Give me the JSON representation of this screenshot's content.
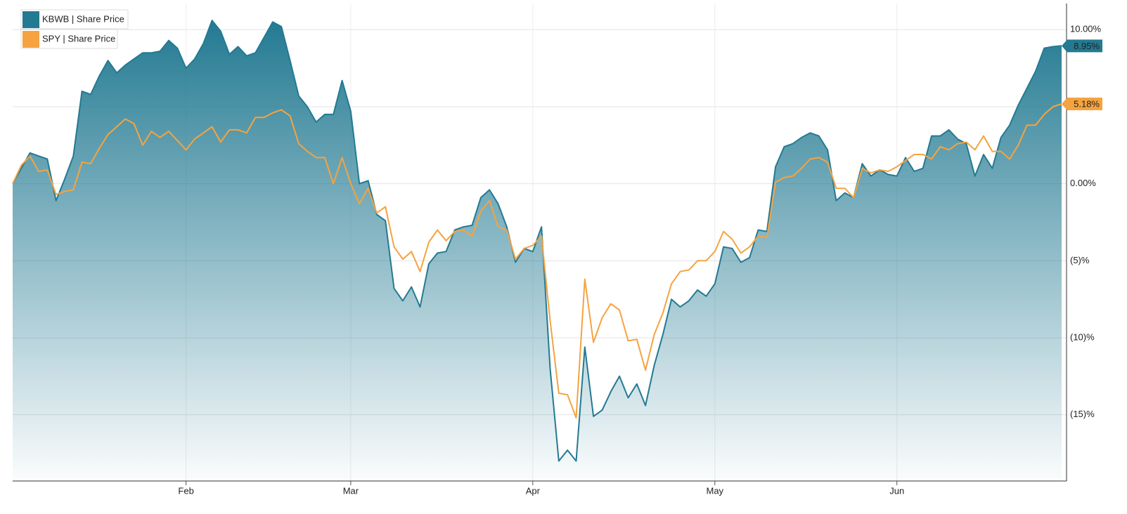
{
  "chart_data": {
    "type": "area-line",
    "categories": [
      null,
      null,
      null,
      null,
      null,
      null,
      null,
      null,
      null,
      null,
      null,
      null,
      null,
      null,
      null,
      null,
      null,
      null,
      null,
      null,
      "Feb",
      null,
      null,
      null,
      null,
      null,
      null,
      null,
      null,
      null,
      null,
      null,
      null,
      null,
      null,
      null,
      null,
      null,
      null,
      "Mar",
      null,
      null,
      null,
      null,
      null,
      null,
      null,
      null,
      null,
      null,
      null,
      null,
      null,
      null,
      null,
      null,
      null,
      null,
      null,
      null,
      "Apr",
      null,
      null,
      null,
      null,
      null,
      null,
      null,
      null,
      null,
      null,
      null,
      null,
      null,
      null,
      null,
      null,
      null,
      null,
      null,
      null,
      "May",
      null,
      null,
      null,
      null,
      null,
      null,
      null,
      null,
      null,
      null,
      null,
      null,
      null,
      null,
      null,
      null,
      null,
      null,
      null,
      null,
      "Jun",
      null,
      null,
      null,
      null,
      null,
      null,
      null,
      null,
      null,
      null,
      null,
      null,
      null,
      null,
      null,
      null,
      null,
      null,
      null
    ],
    "series": [
      {
        "name": "KBWB | Share Price",
        "color": "#237a92",
        "fill": true,
        "values": [
          0,
          1.0,
          2.0,
          1.8,
          1.6,
          -1.1,
          0.3,
          1.8,
          6.0,
          5.8,
          7.0,
          8.0,
          7.2,
          7.7,
          8.1,
          8.5,
          8.5,
          8.6,
          9.3,
          8.8,
          7.5,
          8.1,
          9.1,
          10.6,
          9.9,
          8.4,
          8.9,
          8.3,
          8.5,
          9.5,
          10.5,
          10.2,
          8.0,
          5.7,
          5.0,
          4.0,
          4.5,
          4.5,
          6.7,
          4.7,
          0.0,
          0.2,
          -2.0,
          -2.4,
          -6.8,
          -7.6,
          -6.7,
          -8.0,
          -5.2,
          -4.5,
          -4.4,
          -3.0,
          -2.8,
          -2.7,
          -0.9,
          -0.4,
          -1.3,
          -2.8,
          -5.1,
          -4.2,
          -4.4,
          -2.8,
          -12.0,
          -18.0,
          -17.3,
          -18.0,
          -10.6,
          -15.1,
          -14.7,
          -13.5,
          -12.5,
          -13.9,
          -13.0,
          -14.4,
          -11.8,
          -9.8,
          -7.5,
          -8.0,
          -7.6,
          -6.9,
          -7.3,
          -6.5,
          -4.1,
          -4.2,
          -5.1,
          -4.8,
          -3.0,
          -3.1,
          1.1,
          2.4,
          2.6,
          3.0,
          3.3,
          3.1,
          2.2,
          -1.1,
          -0.6,
          -0.9,
          1.3,
          0.5,
          0.9,
          0.6,
          0.5,
          1.7,
          0.8,
          1.0,
          3.1,
          3.1,
          3.5,
          2.9,
          2.6,
          0.5,
          1.9,
          1.0,
          3.0,
          3.8,
          5.1,
          6.2,
          7.3,
          8.8,
          8.9,
          8.95
        ],
        "value_labels": [
          null,
          null,
          null,
          null,
          null,
          null,
          null,
          null,
          null,
          null,
          null,
          null,
          null,
          null,
          null,
          null,
          null,
          null,
          null,
          null,
          null,
          null,
          null,
          null,
          null,
          null,
          null,
          null,
          null,
          null,
          null,
          null,
          null,
          null,
          null,
          null,
          null,
          null,
          null,
          null,
          null,
          null,
          null,
          null,
          null,
          null,
          null,
          null,
          null,
          null,
          null,
          null,
          null,
          null,
          null,
          null,
          null,
          null,
          null,
          null,
          null,
          null,
          null,
          null,
          null,
          null,
          null,
          null,
          null,
          null,
          null,
          null,
          null,
          null,
          null,
          null,
          null,
          null,
          null,
          null,
          null,
          null,
          null,
          null,
          null,
          null,
          null,
          null,
          null,
          null,
          null,
          null,
          null,
          null,
          null,
          null,
          null,
          null,
          null,
          null,
          null,
          null,
          null,
          null,
          null,
          null,
          null,
          null,
          null,
          null,
          null,
          null,
          null,
          null,
          null,
          null,
          null,
          null,
          null,
          null,
          null,
          "8.95%"
        ]
      },
      {
        "name": "SPY | Share Price",
        "color": "#f5a340",
        "fill": false,
        "values": [
          0,
          1.2,
          1.8,
          0.8,
          0.9,
          -0.7,
          -0.5,
          -0.4,
          1.4,
          1.3,
          2.3,
          3.2,
          3.7,
          4.2,
          3.9,
          2.5,
          3.4,
          3.0,
          3.4,
          2.8,
          2.2,
          2.9,
          3.3,
          3.7,
          2.7,
          3.5,
          3.5,
          3.3,
          4.3,
          4.3,
          4.6,
          4.8,
          4.4,
          2.6,
          2.1,
          1.7,
          1.7,
          0.0,
          1.7,
          0.0,
          -1.3,
          -0.3,
          -1.9,
          -1.5,
          -4.1,
          -4.9,
          -4.4,
          -5.7,
          -3.8,
          -3.0,
          -3.7,
          -3.1,
          -3.0,
          -3.4,
          -1.8,
          -1.1,
          -2.8,
          -3.0,
          -4.9,
          -4.2,
          -4.0,
          -3.4,
          -8.9,
          -13.6,
          -13.7,
          -15.2,
          -6.2,
          -10.3,
          -8.7,
          -7.8,
          -8.2,
          -10.2,
          -10.1,
          -12.1,
          -9.8,
          -8.4,
          -6.5,
          -5.7,
          -5.6,
          -5.0,
          -5.0,
          -4.4,
          -3.1,
          -3.6,
          -4.5,
          -4.1,
          -3.4,
          -3.5,
          0.1,
          0.4,
          0.5,
          1.0,
          1.6,
          1.7,
          1.4,
          -0.3,
          -0.3,
          -0.9,
          1.0,
          0.7,
          0.9,
          0.8,
          1.1,
          1.5,
          1.9,
          1.9,
          1.6,
          2.4,
          2.2,
          2.6,
          2.7,
          2.2,
          3.1,
          2.1,
          2.1,
          1.6,
          2.5,
          3.8,
          3.8,
          4.5,
          5.0,
          5.18
        ],
        "value_labels": [
          null,
          null,
          null,
          null,
          null,
          null,
          null,
          null,
          null,
          null,
          null,
          null,
          null,
          null,
          null,
          null,
          null,
          null,
          null,
          null,
          null,
          null,
          null,
          null,
          null,
          null,
          null,
          null,
          null,
          null,
          null,
          null,
          null,
          null,
          null,
          null,
          null,
          null,
          null,
          null,
          null,
          null,
          null,
          null,
          null,
          null,
          null,
          null,
          null,
          null,
          null,
          null,
          null,
          null,
          null,
          null,
          null,
          null,
          null,
          null,
          null,
          null,
          null,
          null,
          null,
          null,
          null,
          null,
          null,
          null,
          null,
          null,
          null,
          null,
          null,
          null,
          null,
          null,
          null,
          null,
          null,
          null,
          null,
          null,
          null,
          null,
          null,
          null,
          null,
          null,
          null,
          null,
          null,
          null,
          null,
          null,
          null,
          null,
          null,
          null,
          null,
          null,
          null,
          null,
          null,
          null,
          null,
          null,
          null,
          null,
          null,
          null,
          null,
          null,
          null,
          null,
          null,
          null,
          null,
          null,
          null,
          "5.18%"
        ]
      }
    ],
    "ylim": [
      -19.3,
      11.7
    ],
    "yticks": [
      {
        "value": 10,
        "label": "10.00%"
      },
      {
        "value": 5
      },
      {
        "value": 0,
        "label": "0.00%"
      },
      {
        "value": -5,
        "label": "(5)%"
      },
      {
        "value": -10,
        "label": "(10)%"
      },
      {
        "value": -15,
        "label": "(15)%"
      }
    ],
    "grid": true,
    "legend": "top-left"
  }
}
